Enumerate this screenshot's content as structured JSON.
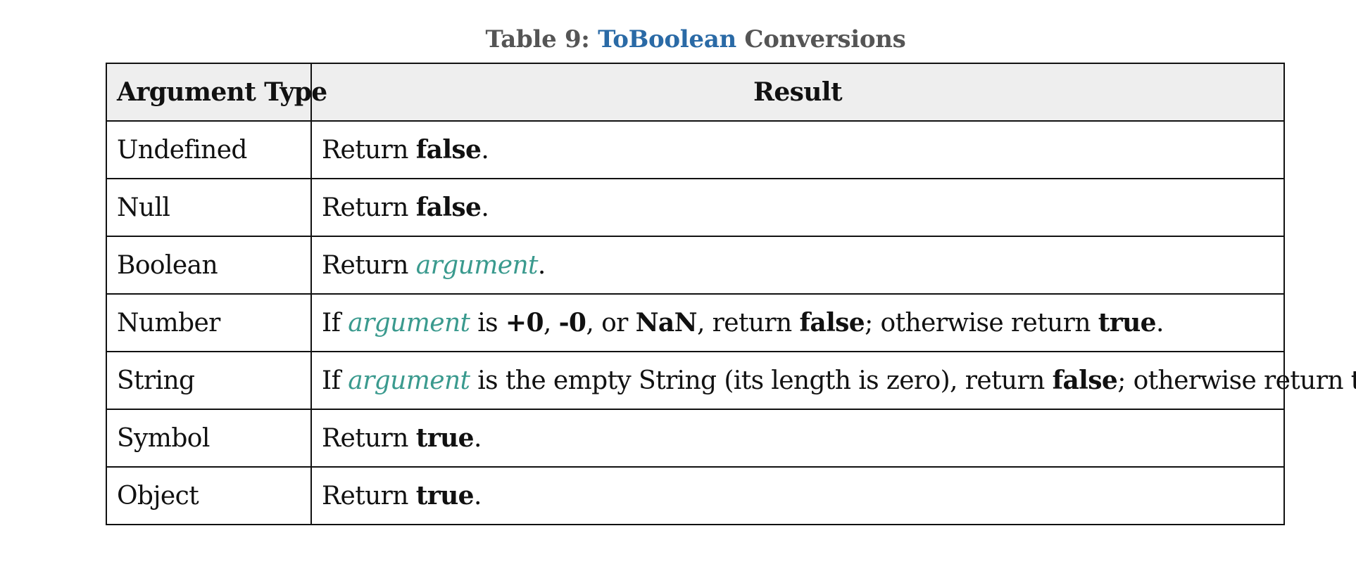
{
  "caption": {
    "prefix": "Table 9: ",
    "link_text": "ToBoolean",
    "suffix": " Conversions"
  },
  "table": {
    "headers": [
      "Argument Type",
      "Result"
    ],
    "rows": [
      {
        "type": "Undefined",
        "result": [
          {
            "t": "Return "
          },
          {
            "t": "false",
            "s": "b"
          },
          {
            "t": "."
          }
        ]
      },
      {
        "type": "Null",
        "result": [
          {
            "t": "Return "
          },
          {
            "t": "false",
            "s": "b"
          },
          {
            "t": "."
          }
        ]
      },
      {
        "type": "Boolean",
        "result": [
          {
            "t": "Return "
          },
          {
            "t": "argument",
            "s": "var"
          },
          {
            "t": "."
          }
        ]
      },
      {
        "type": "Number",
        "result": [
          {
            "t": "If "
          },
          {
            "t": "argument",
            "s": "var"
          },
          {
            "t": " is "
          },
          {
            "t": "+0",
            "s": "b"
          },
          {
            "t": ", "
          },
          {
            "t": "-0",
            "s": "b"
          },
          {
            "t": ", or "
          },
          {
            "t": "NaN",
            "s": "b"
          },
          {
            "t": ", return "
          },
          {
            "t": "false",
            "s": "b"
          },
          {
            "t": "; otherwise return "
          },
          {
            "t": "true",
            "s": "b"
          },
          {
            "t": "."
          }
        ]
      },
      {
        "type": "String",
        "result": [
          {
            "t": "If "
          },
          {
            "t": "argument",
            "s": "var"
          },
          {
            "t": " is the empty String (its length is zero), return "
          },
          {
            "t": "false",
            "s": "b"
          },
          {
            "t": "; otherwise return "
          },
          {
            "t": "true",
            "s": "b"
          },
          {
            "t": "."
          }
        ]
      },
      {
        "type": "Symbol",
        "result": [
          {
            "t": "Return "
          },
          {
            "t": "true",
            "s": "b"
          },
          {
            "t": "."
          }
        ]
      },
      {
        "type": "Object",
        "result": [
          {
            "t": "Return "
          },
          {
            "t": "true",
            "s": "b"
          },
          {
            "t": "."
          }
        ]
      }
    ]
  },
  "colors": {
    "caption_text": "#555555",
    "link": "#2a6aa6",
    "variable": "#3a9a8e",
    "header_bg": "#eeeeee",
    "border": "#111111"
  }
}
